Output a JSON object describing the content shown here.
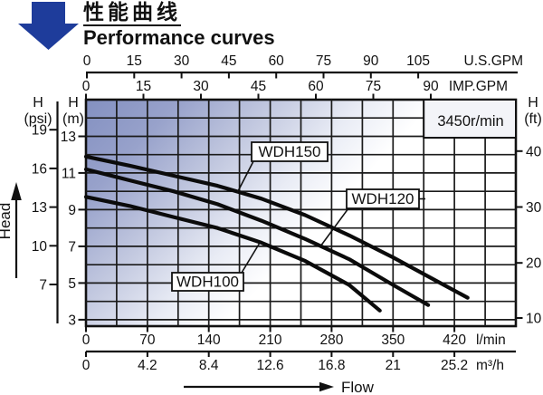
{
  "header": {
    "title_zh": "性能曲线",
    "title_en": "Performance curves",
    "arrow_color": "#1e3c9b"
  },
  "chart": {
    "rpm_label": "3450r/min",
    "flow_label": "Flow",
    "head_label": "Head"
  },
  "axes": {
    "us_gpm": {
      "unit": "U.S.GPM",
      "ticks": [
        "0",
        "15",
        "30",
        "45",
        "60",
        "75",
        "90",
        "105"
      ]
    },
    "imp_gpm": {
      "unit": "IMP.GPM",
      "ticks": [
        "0",
        "15",
        "30",
        "45",
        "60",
        "75",
        "90"
      ]
    },
    "psi": {
      "header_1": "H",
      "header_2": "(psi)",
      "ticks": [
        "19",
        "16",
        "13",
        "10",
        "7"
      ]
    },
    "m": {
      "header_1": "H",
      "header_2": "(m)",
      "ticks": [
        "13",
        "11",
        "9",
        "7",
        "5",
        "3"
      ]
    },
    "ft": {
      "header_1": "H",
      "header_2": "(ft)",
      "ticks": [
        "40",
        "30",
        "20",
        "10"
      ]
    },
    "lmin": {
      "unit": "l/min",
      "ticks": [
        "0",
        "70",
        "140",
        "210",
        "280",
        "350",
        "420"
      ]
    },
    "m3h": {
      "unit": "m³/h",
      "ticks": [
        "0",
        "4.2",
        "8.4",
        "12.6",
        "16.8",
        "21",
        "25.2"
      ]
    }
  },
  "chart_data": {
    "type": "line",
    "title_zh": "性能曲线",
    "title_en": "Performance curves",
    "xlabel": "Flow",
    "ylabel": "Head",
    "speed": "3450r/min",
    "grid": true,
    "x_axes": [
      {
        "unit": "U.S.GPM",
        "ticks": [
          0,
          15,
          30,
          45,
          60,
          75,
          90,
          105
        ]
      },
      {
        "unit": "IMP.GPM",
        "ticks": [
          0,
          15,
          30,
          45,
          60,
          75,
          90
        ]
      },
      {
        "unit": "l/min",
        "ticks": [
          0,
          70,
          140,
          210,
          280,
          350,
          420
        ]
      },
      {
        "unit": "m³/h",
        "ticks": [
          0,
          4.2,
          8.4,
          12.6,
          16.8,
          21,
          25.2
        ]
      }
    ],
    "y_axes": [
      {
        "unit": "psi",
        "ticks": [
          19,
          16,
          13,
          10,
          7
        ]
      },
      {
        "unit": "m",
        "ticks": [
          13,
          11,
          9,
          7,
          5,
          3
        ]
      },
      {
        "unit": "ft",
        "ticks": [
          40,
          30,
          20,
          10
        ]
      }
    ],
    "x_range_lmin": [
      0,
      490
    ],
    "y_range_m": [
      2.65,
      15
    ],
    "series": [
      {
        "name": "WDH150",
        "x_lmin": [
          0,
          50,
          100,
          150,
          200,
          250,
          300,
          350,
          400,
          435
        ],
        "head_m": [
          11.9,
          11.4,
          10.85,
          10.3,
          9.6,
          8.7,
          7.6,
          6.4,
          5.1,
          4.2
        ]
      },
      {
        "name": "WDH120",
        "x_lmin": [
          0,
          50,
          100,
          150,
          200,
          250,
          300,
          350,
          390
        ],
        "head_m": [
          11.2,
          10.6,
          10.0,
          9.3,
          8.4,
          7.4,
          6.3,
          4.9,
          3.8
        ]
      },
      {
        "name": "WDH100",
        "x_lmin": [
          0,
          50,
          100,
          150,
          200,
          250,
          300,
          335
        ],
        "head_m": [
          9.7,
          9.2,
          8.6,
          8.0,
          7.2,
          6.2,
          4.9,
          3.5
        ]
      }
    ]
  }
}
